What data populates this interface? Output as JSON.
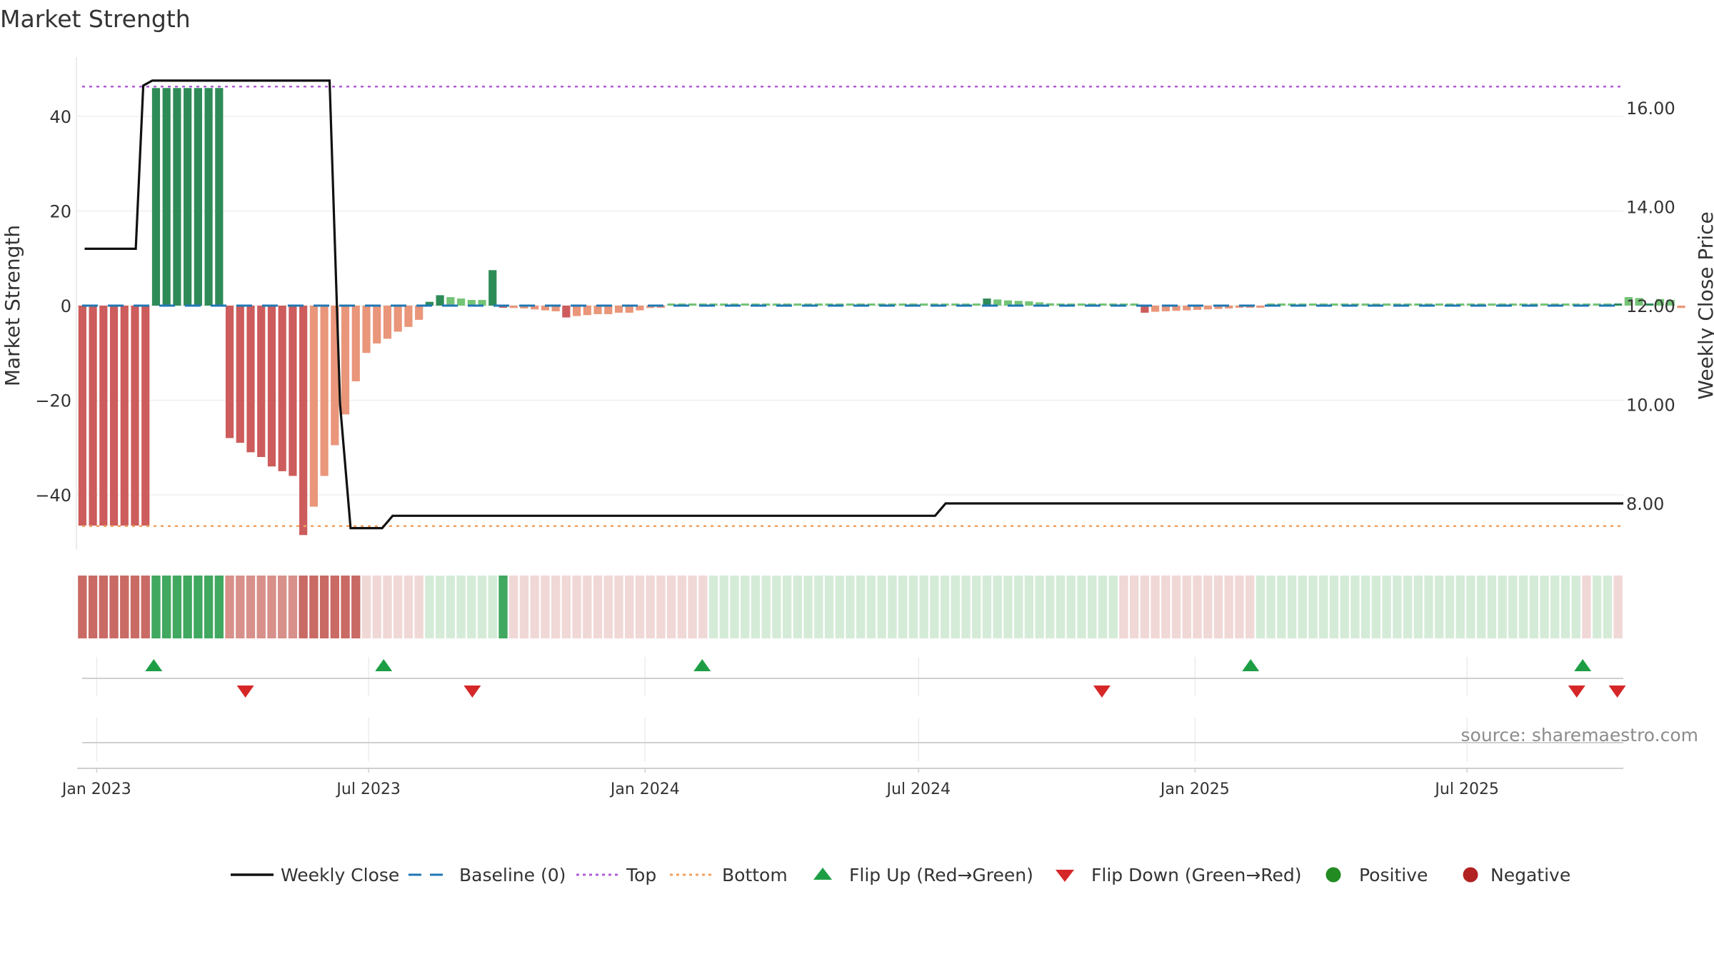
{
  "title": "Market Strength",
  "source": "source: sharemaestro.com",
  "colors": {
    "strong_pos": "#2e8b57",
    "weak_pos": "#74c476",
    "strong_neg": "#cd5c5c",
    "weak_neg": "#e9967a",
    "band_strong_pos": "#41a85f",
    "band_weak_pos": "#d4ebd8",
    "band_strong_neg": "#c96a64",
    "band_mid_neg": "#d8908b",
    "band_weak_neg": "#f0d8d6",
    "price": "#111111",
    "baseline": "#1f77b4",
    "top": "#b05cd6",
    "bottom": "#f0a060",
    "flip_up": "#1e9e44",
    "flip_down": "#d62728",
    "positive": "#228b22",
    "negative": "#b22222"
  },
  "legend": [
    {
      "label": "Weekly Close",
      "kind": "line-solid",
      "color": "#111111"
    },
    {
      "label": "Baseline (0)",
      "kind": "line-dash",
      "color": "#1f77b4"
    },
    {
      "label": "Top",
      "kind": "line-dot",
      "color": "#b05cd6"
    },
    {
      "label": "Bottom",
      "kind": "line-dot",
      "color": "#f0a060"
    },
    {
      "label": "Flip Up (Red→Green)",
      "kind": "tri-up",
      "color": "#1e9e44"
    },
    {
      "label": "Flip Down (Green→Red)",
      "kind": "tri-down",
      "color": "#d62728"
    },
    {
      "label": "Positive",
      "kind": "dot",
      "color": "#228b22"
    },
    {
      "label": "Negative",
      "kind": "dot",
      "color": "#b22222"
    }
  ],
  "chart_data": {
    "type": "bar",
    "title": "Market Strength",
    "ylabel": "Market Strength",
    "y2label": "Weekly Close Price",
    "ylim": [
      -52,
      52
    ],
    "y2lim": [
      7.2,
      16.8
    ],
    "yticks": [
      40,
      20,
      0,
      -20,
      -40
    ],
    "yticklabels": [
      "40",
      "20",
      "0",
      "−20",
      "−40"
    ],
    "y2ticks": [
      16,
      14,
      12,
      10,
      8
    ],
    "y2ticklabels": [
      "16.00",
      "14.00",
      "12.00",
      "10.00",
      "8.00"
    ],
    "x_start": "2022-12-19",
    "x_end": "2025-10-13",
    "xticks": [
      {
        "label": "Jan 2023",
        "date": "2023-01-01"
      },
      {
        "label": "Jul 2023",
        "date": "2023-07-01"
      },
      {
        "label": "Jan 2024",
        "date": "2024-01-01"
      },
      {
        "label": "Jul 2024",
        "date": "2024-07-01"
      },
      {
        "label": "Jan 2025",
        "date": "2025-01-01"
      },
      {
        "label": "Jul 2025",
        "date": "2025-07-01"
      }
    ],
    "top_level": 46.3,
    "bottom_level": -46.6,
    "baseline": 0,
    "weeks": 147,
    "strength": [
      -46.5,
      -46.5,
      -46.5,
      -46.5,
      -46.5,
      -46.5,
      -46.5,
      46,
      46,
      46,
      46,
      46,
      46,
      46,
      -28,
      -29,
      -31,
      -32,
      -34,
      -35,
      -36,
      -48.5,
      -42.5,
      -36,
      -29.5,
      -23,
      -16,
      -10,
      -8,
      -7,
      -5.5,
      -4.5,
      -3,
      0.8,
      2.2,
      1.8,
      1.5,
      1.2,
      1.2,
      7.5,
      -0.3,
      -0.5,
      -0.6,
      -0.8,
      -1,
      -1.2,
      -2.5,
      -2.2,
      -2,
      -1.8,
      -1.8,
      -1.5,
      -1.5,
      -1,
      -0.5,
      -0.2,
      0,
      0,
      0,
      0,
      0,
      0,
      0,
      0,
      0,
      0,
      0,
      0,
      0,
      0,
      0,
      0,
      0,
      0,
      0,
      0,
      0,
      0,
      0,
      0,
      0,
      0,
      0,
      0,
      0,
      0,
      1.5,
      1.3,
      1.1,
      1,
      0.9,
      0.7,
      0.5,
      0.4,
      0.3,
      0.2,
      0.1,
      0,
      0,
      0,
      0,
      -1.5,
      -1.3,
      -1.2,
      -1.1,
      -1,
      -0.9,
      -0.8,
      -0.7,
      -0.6,
      -0.4,
      -0.3,
      -0.2,
      0,
      0,
      0,
      0,
      0,
      0,
      0,
      0,
      0,
      0,
      0,
      0,
      0,
      0,
      0,
      0,
      0,
      0,
      0,
      0,
      0,
      0,
      0,
      0,
      0,
      0,
      0,
      0,
      0,
      0,
      0,
      0,
      0,
      0,
      1.8,
      1.6,
      0,
      1.4,
      1.2,
      -0.5
    ],
    "strength_strong": [
      1,
      1,
      1,
      1,
      1,
      1,
      1,
      1,
      1,
      1,
      1,
      1,
      1,
      1,
      1,
      1,
      1,
      1,
      1,
      1,
      1,
      1,
      0,
      0,
      0,
      0,
      0,
      0,
      0,
      0,
      0,
      0,
      0,
      1,
      1,
      0,
      0,
      0,
      0,
      1,
      1,
      0,
      0,
      0,
      0,
      0,
      1,
      0,
      0,
      0,
      0,
      0,
      0,
      0,
      0,
      0,
      0,
      0,
      0,
      0,
      0,
      0,
      0,
      0,
      0,
      0,
      0,
      0,
      0,
      0,
      0,
      0,
      0,
      0,
      0,
      0,
      0,
      0,
      0,
      0,
      0,
      0,
      0,
      0,
      0,
      0,
      1,
      0,
      0,
      0,
      0,
      0,
      0,
      0,
      0,
      0,
      0,
      0,
      0,
      0,
      0,
      1,
      0,
      0,
      0,
      0,
      0,
      0,
      0,
      0,
      0,
      0,
      0,
      0,
      0,
      0,
      0,
      0,
      0,
      0,
      0,
      0,
      0,
      0,
      0,
      0,
      0,
      0,
      0,
      0,
      0,
      0,
      0,
      0,
      0,
      0,
      0,
      0,
      0,
      0,
      0,
      0,
      0,
      0,
      0,
      0,
      1,
      0,
      0,
      1,
      0,
      0
    ],
    "price_points": [
      {
        "date": "2022-12-24",
        "price": 13.15
      },
      {
        "date": "2023-01-27",
        "price": 13.15
      },
      {
        "date": "2023-02-01",
        "price": 16.45
      },
      {
        "date": "2023-02-07",
        "price": 16.55
      },
      {
        "date": "2023-06-05",
        "price": 16.55
      },
      {
        "date": "2023-06-12",
        "price": 10.0
      },
      {
        "date": "2023-06-19",
        "price": 7.5
      },
      {
        "date": "2023-07-10",
        "price": 7.5
      },
      {
        "date": "2023-07-17",
        "price": 7.75
      },
      {
        "date": "2024-07-12",
        "price": 7.75
      },
      {
        "date": "2024-07-19",
        "price": 8.0
      },
      {
        "date": "2025-10-13",
        "price": 8.0
      }
    ],
    "band": [
      {
        "from": 0,
        "to": 7,
        "state": "strong_neg"
      },
      {
        "from": 7,
        "to": 14,
        "state": "strong_pos"
      },
      {
        "from": 14,
        "to": 21,
        "state": "mid_neg"
      },
      {
        "from": 21,
        "to": 27,
        "state": "strong_neg"
      },
      {
        "from": 27,
        "to": 33,
        "state": "weak_neg"
      },
      {
        "from": 33,
        "to": 41,
        "state": "weak_pos"
      },
      {
        "from": 41,
        "to": 60,
        "state": "weak_neg"
      },
      {
        "from": 60,
        "to": 99,
        "state": "weak_pos"
      },
      {
        "from": 99,
        "to": 112,
        "state": "weak_neg"
      },
      {
        "from": 112,
        "to": 143,
        "state": "weak_pos"
      },
      {
        "from": 143,
        "to": 144,
        "state": "weak_neg"
      },
      {
        "from": 144,
        "to": 146,
        "state": "weak_pos"
      },
      {
        "from": 146,
        "to": 147,
        "state": "weak_neg"
      }
    ],
    "band_highlights": [
      {
        "index": 40,
        "state": "strong_pos"
      }
    ],
    "flips_up": [
      "2023-02-08",
      "2023-07-11",
      "2024-02-08",
      "2025-02-07",
      "2025-09-16"
    ],
    "flips_down": [
      "2023-04-10",
      "2023-09-08",
      "2024-10-31",
      "2025-09-12",
      "2025-10-09"
    ]
  }
}
